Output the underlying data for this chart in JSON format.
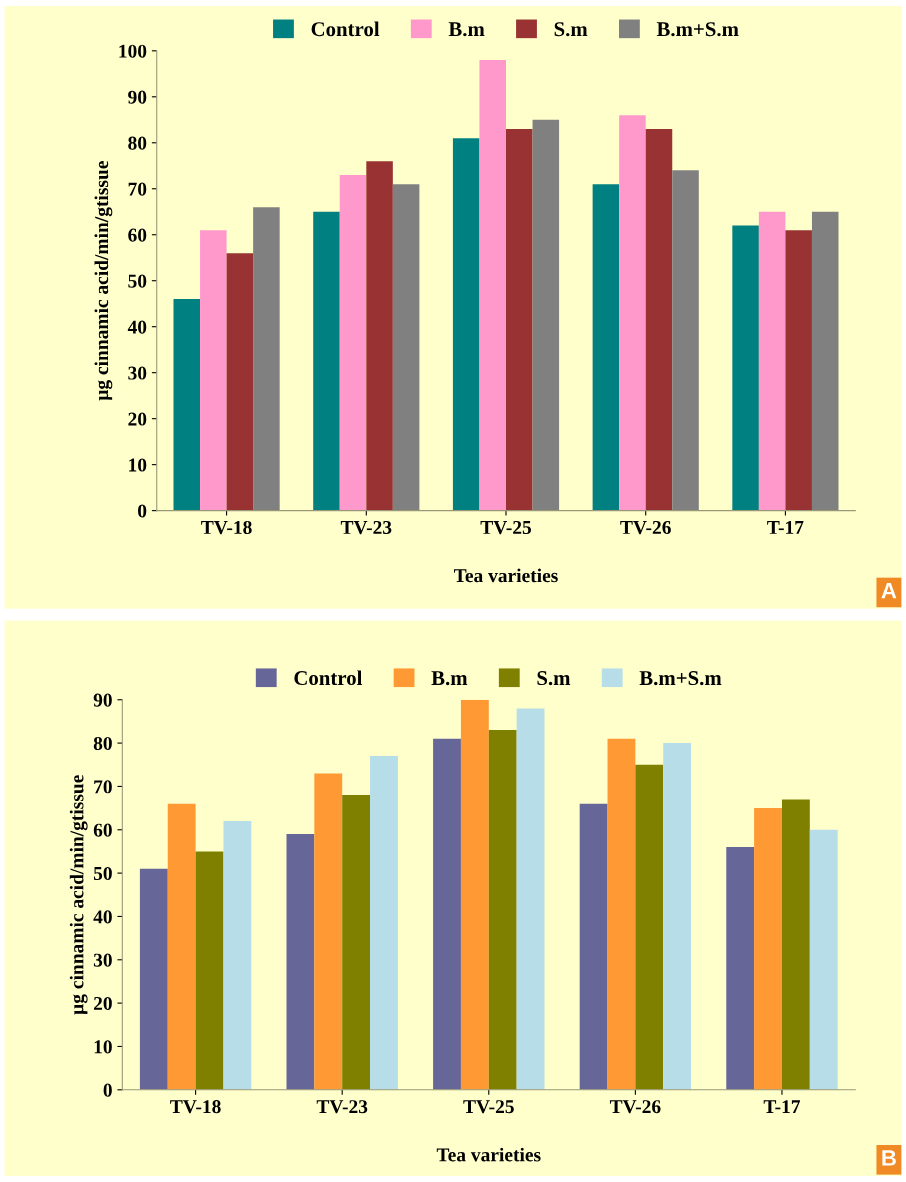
{
  "chart_data": [
    {
      "type": "bar",
      "xlabel": "Tea varieties",
      "ylabel": "µg cinnamic acid/min/gtissue",
      "categories": [
        "TV-18",
        "TV-23",
        "TV-25",
        "TV-26",
        "T-17"
      ],
      "ylim": [
        0,
        100
      ],
      "yticks": [
        0,
        10,
        20,
        30,
        40,
        50,
        60,
        70,
        80,
        90,
        100
      ],
      "legend": "top",
      "grid": false,
      "annotations": [
        "A"
      ],
      "series": [
        {
          "name": "Control",
          "color": "#008080",
          "values": [
            46,
            65,
            81,
            71,
            62
          ]
        },
        {
          "name": "B.m",
          "color": "#ff99cc",
          "values": [
            61,
            73,
            98,
            86,
            65
          ]
        },
        {
          "name": "S.m",
          "color": "#993333",
          "values": [
            56,
            76,
            83,
            83,
            61
          ]
        },
        {
          "name": "B.m+S.m",
          "color": "#808080",
          "values": [
            66,
            71,
            85,
            74,
            65
          ]
        }
      ]
    },
    {
      "type": "bar",
      "xlabel": "Tea varieties",
      "ylabel": "µg cinnamic acid/min/gtissue",
      "categories": [
        "TV-18",
        "TV-23",
        "TV-25",
        "TV-26",
        "T-17"
      ],
      "ylim": [
        0,
        90
      ],
      "yticks": [
        0,
        10,
        20,
        30,
        40,
        50,
        60,
        70,
        80,
        90
      ],
      "legend": "top",
      "grid": false,
      "annotations": [
        "B"
      ],
      "series": [
        {
          "name": "Control",
          "color": "#666699",
          "values": [
            51,
            59,
            81,
            66,
            56
          ]
        },
        {
          "name": "B.m",
          "color": "#ff9933",
          "values": [
            66,
            73,
            90,
            81,
            65
          ]
        },
        {
          "name": "S.m",
          "color": "#808000",
          "values": [
            55,
            68,
            83,
            75,
            67
          ]
        },
        {
          "name": "B.m+S.m",
          "color": "#b7dde8",
          "values": [
            62,
            77,
            88,
            80,
            60
          ]
        }
      ]
    }
  ]
}
